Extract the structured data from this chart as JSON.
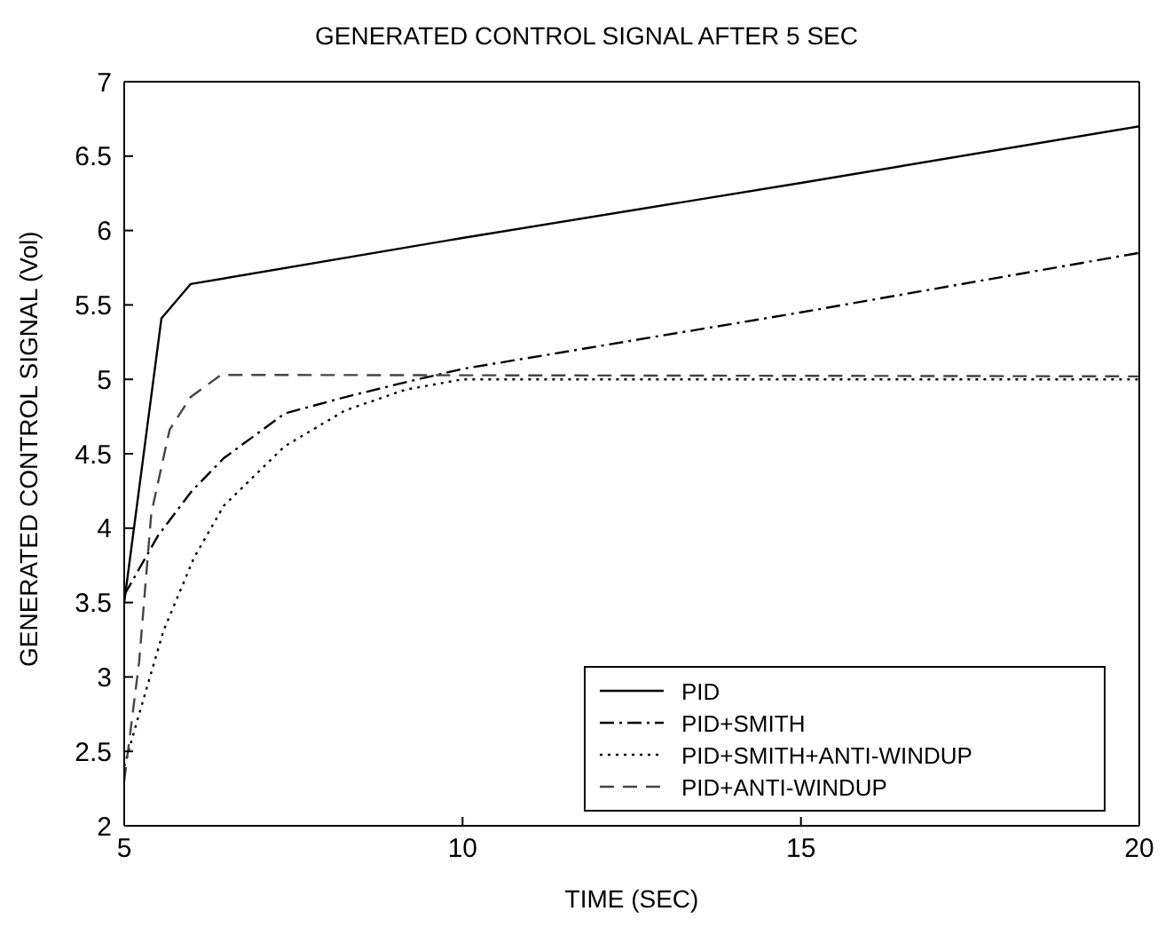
{
  "chart_data": {
    "type": "line",
    "title": "GENERATED CONTROL SIGNAL AFTER 5 SEC",
    "xlabel": "TIME (SEC)",
    "ylabel": "GENERATED CONTROL SIGNAL (Vol)",
    "xlim": [
      5,
      20
    ],
    "xticks": [
      5,
      10,
      15,
      20
    ],
    "ylim": [
      2,
      7
    ],
    "yticks": [
      2,
      2.5,
      3,
      3.5,
      4,
      4.5,
      5,
      5.5,
      6,
      6.5,
      7
    ],
    "grid": false,
    "legend": "bottom right",
    "marker": "none",
    "series": [
      {
        "name": "PID",
        "color": "#000000",
        "line_style": "solid",
        "x": [
          5,
          5.55,
          5.98,
          10,
          15,
          20
        ],
        "values": [
          3.5,
          5.41,
          5.64,
          5.95,
          6.32,
          6.7
        ]
      },
      {
        "name": "PID+SMITH",
        "color": "#000000",
        "line_style": "dashdot",
        "x": [
          5,
          5.5,
          6,
          6.47,
          7.37,
          8.26,
          9.15,
          10,
          15,
          20
        ],
        "values": [
          3.55,
          3.95,
          4.25,
          4.47,
          4.77,
          4.88,
          4.98,
          5.07,
          5.45,
          5.85
        ]
      },
      {
        "name": "PID+SMITH+ANTI-WINDUP",
        "color": "#000000",
        "line_style": "dotted",
        "x": [
          5,
          5.22,
          5.58,
          6.03,
          6.47,
          7.37,
          8.26,
          9.15,
          10,
          20
        ],
        "values": [
          2.4,
          2.75,
          3.31,
          3.8,
          4.15,
          4.55,
          4.79,
          4.93,
          5,
          5
        ]
      },
      {
        "name": "PID+ANTI-WINDUP",
        "color": "#444444",
        "line_style": "dashed",
        "x": [
          5,
          5.22,
          5.4,
          5.67,
          5.98,
          6.43,
          20
        ],
        "values": [
          2.3,
          3.1,
          4.1,
          4.66,
          4.88,
          5.03,
          5.02
        ]
      }
    ]
  }
}
